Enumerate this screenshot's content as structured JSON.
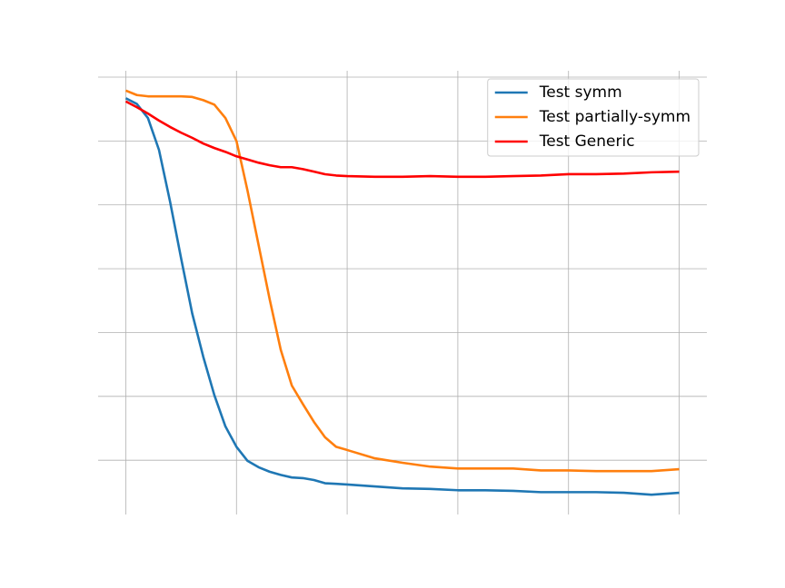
{
  "chart_data": {
    "type": "line",
    "x": [
      0,
      0.1,
      0.2,
      0.3,
      0.4,
      0.5,
      0.6,
      0.7,
      0.8,
      0.9,
      1.0,
      1.1,
      1.2,
      1.3,
      1.4,
      1.5,
      1.6,
      1.7,
      1.8,
      1.9,
      2.0,
      2.25,
      2.5,
      2.75,
      3.0,
      3.25,
      3.5,
      3.75,
      4.0,
      4.25,
      4.5,
      4.75,
      5.0
    ],
    "series": [
      {
        "name": "Test symm",
        "color": "#1f77b4",
        "values": [
          5.67,
          5.58,
          5.36,
          4.86,
          4.05,
          3.16,
          2.3,
          1.62,
          1.02,
          0.53,
          0.21,
          -0.01,
          -0.11,
          -0.18,
          -0.23,
          -0.27,
          -0.28,
          -0.31,
          -0.36,
          -0.37,
          -0.38,
          -0.41,
          -0.44,
          -0.45,
          -0.47,
          -0.47,
          -0.48,
          -0.5,
          -0.5,
          -0.5,
          -0.51,
          -0.54,
          -0.51
        ]
      },
      {
        "name": "Test partially-symm",
        "color": "#ff7f0e",
        "values": [
          5.79,
          5.72,
          5.7,
          5.7,
          5.7,
          5.7,
          5.69,
          5.64,
          5.57,
          5.36,
          5.0,
          4.22,
          3.37,
          2.52,
          1.73,
          1.17,
          0.88,
          0.6,
          0.36,
          0.21,
          0.16,
          0.03,
          -0.04,
          -0.1,
          -0.13,
          -0.13,
          -0.13,
          -0.16,
          -0.16,
          -0.17,
          -0.17,
          -0.17,
          -0.14
        ]
      },
      {
        "name": "Test Generic",
        "color": "#ff0000",
        "values": [
          5.62,
          5.53,
          5.43,
          5.32,
          5.22,
          5.13,
          5.05,
          4.96,
          4.89,
          4.83,
          4.76,
          4.71,
          4.66,
          4.62,
          4.59,
          4.59,
          4.56,
          4.52,
          4.48,
          4.46,
          4.45,
          4.44,
          4.44,
          4.45,
          4.44,
          4.44,
          4.45,
          4.46,
          4.48,
          4.48,
          4.49,
          4.51,
          4.52
        ]
      }
    ],
    "xlim": [
      -0.25,
      5.25
    ],
    "ylim": [
      -0.85,
      6.1
    ],
    "xticks": [
      0,
      1,
      2,
      3,
      4,
      5
    ],
    "yticks": [
      0,
      1,
      2,
      3,
      4,
      5,
      6
    ],
    "grid": true,
    "legend": "upper right"
  }
}
